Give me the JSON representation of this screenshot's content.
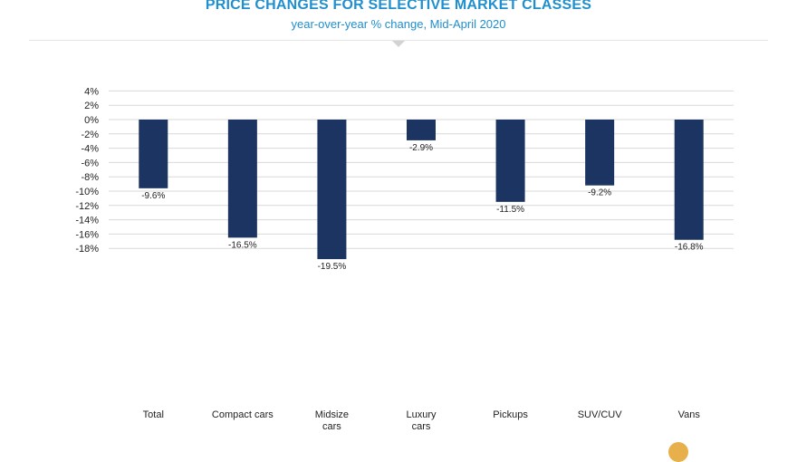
{
  "chart_data": {
    "type": "bar",
    "title": "PRICE CHANGES FOR SELECTIVE MARKET CLASSES",
    "subtitle": "year-over-year % change, Mid-April 2020",
    "categories": [
      [
        "Total"
      ],
      [
        "Compact cars"
      ],
      [
        "Midsize",
        "cars"
      ],
      [
        "Luxury",
        "cars"
      ],
      [
        "Pickups"
      ],
      [
        "SUV/CUV"
      ],
      [
        "Vans"
      ]
    ],
    "values": [
      -9.6,
      -16.5,
      -19.5,
      -2.9,
      -11.5,
      -9.2,
      -16.8
    ],
    "value_labels": [
      "-9.6%",
      "-16.5%",
      "-19.5%",
      "-2.9%",
      "-11.5%",
      "-9.2%",
      "-16.8%"
    ],
    "y_ticks": [
      4,
      2,
      0,
      -2,
      -4,
      -6,
      -8,
      -10,
      -12,
      -14,
      -16,
      -18
    ],
    "y_tick_labels": [
      "4%",
      "2%",
      "0%",
      "-2%",
      "-4%",
      "-6%",
      "-8%",
      "-10%",
      "-12%",
      "-14%",
      "-16%",
      "-18%"
    ],
    "ylim": [
      -20,
      4
    ],
    "xlabel": "",
    "ylabel": "",
    "grid": true,
    "bar_color": "#1c3461",
    "grid_color": "#d9d9d9",
    "title_color": "#1f8fce"
  }
}
